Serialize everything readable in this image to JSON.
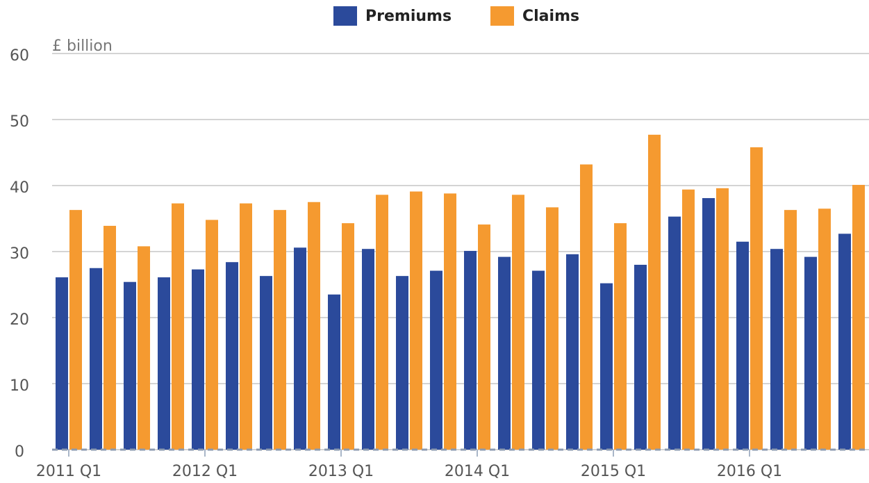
{
  "chart_data": {
    "type": "bar",
    "y_label": "£ billion",
    "categories": [
      "2011 Q1",
      null,
      null,
      null,
      "2012 Q1",
      null,
      null,
      null,
      "2013 Q1",
      null,
      null,
      null,
      "2014 Q1",
      null,
      null,
      null,
      "2015 Q1",
      null,
      null,
      null,
      "2016 Q1",
      null,
      null,
      null
    ],
    "series": [
      {
        "name": "Premiums",
        "color": "#2b4a9b",
        "values": [
          26.1,
          27.5,
          25.4,
          26.1,
          27.3,
          28.4,
          26.3,
          30.6,
          23.5,
          30.4,
          26.3,
          27.1,
          30.1,
          29.2,
          27.1,
          29.6,
          25.2,
          28.0,
          35.3,
          38.1,
          31.5,
          30.4,
          29.2,
          32.7
        ]
      },
      {
        "name": "Claims",
        "color": "#f59a30",
        "values": [
          36.3,
          33.9,
          30.8,
          37.3,
          34.8,
          37.3,
          36.3,
          37.5,
          34.3,
          38.6,
          39.1,
          38.8,
          34.1,
          38.6,
          36.7,
          43.2,
          34.3,
          47.7,
          39.4,
          39.6,
          45.8,
          36.3,
          36.5,
          40.1
        ]
      }
    ],
    "ylim": [
      0,
      60
    ],
    "yticks": [
      0,
      10,
      20,
      30,
      40,
      50,
      60
    ],
    "grid": true,
    "legend": "top"
  }
}
